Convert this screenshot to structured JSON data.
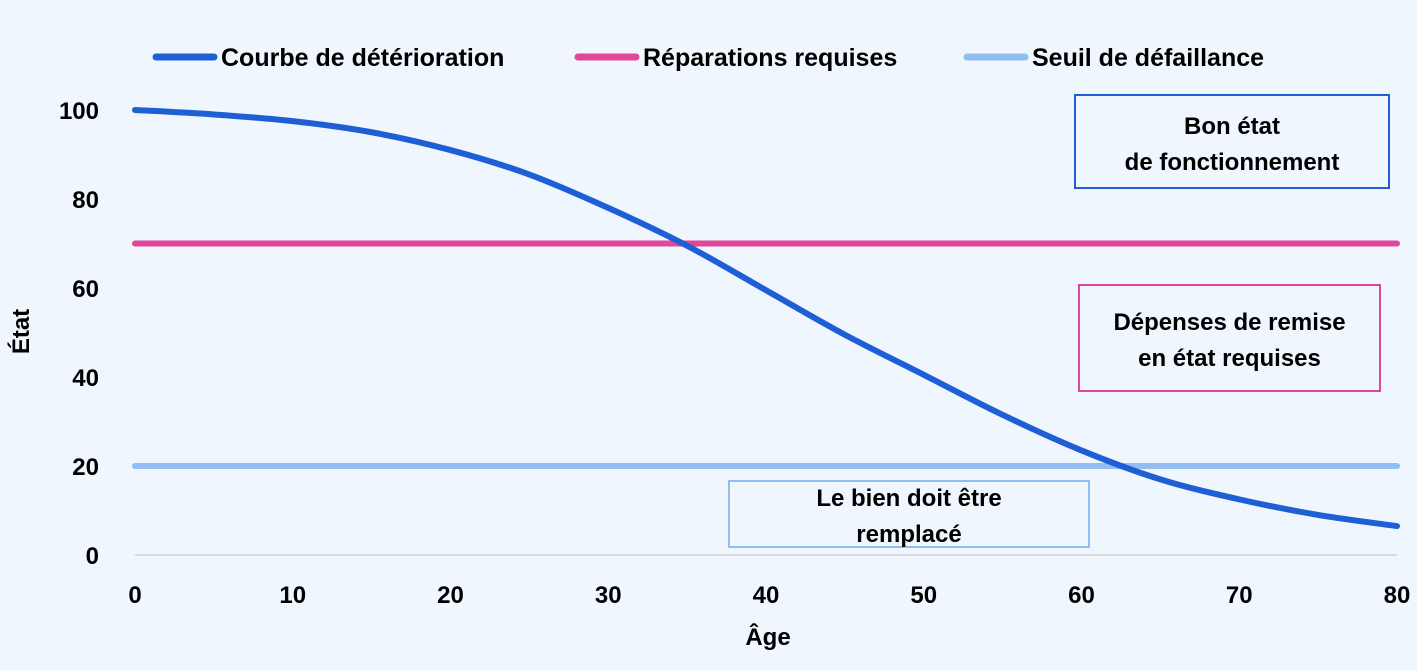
{
  "chart_data": {
    "type": "line",
    "xlabel": "Âge",
    "ylabel": "État",
    "xlim": [
      0,
      80
    ],
    "ylim": [
      0,
      100
    ],
    "xticks": [
      0,
      10,
      20,
      30,
      40,
      50,
      60,
      70,
      80
    ],
    "yticks": [
      0,
      20,
      40,
      60,
      80,
      100
    ],
    "grid": false,
    "legend_position": "top",
    "series": [
      {
        "name": "Courbe de détérioration",
        "color": "#1f5fd6",
        "x": [
          0,
          5,
          10,
          15,
          20,
          25,
          30,
          35,
          40,
          45,
          50,
          55,
          60,
          65,
          70,
          75,
          80
        ],
        "y": [
          100,
          99,
          97.5,
          95,
          91,
          85.5,
          78,
          69.5,
          59.5,
          49.5,
          40.5,
          31.5,
          23.5,
          17,
          12.5,
          9,
          6.5
        ]
      },
      {
        "name": "Réparations requises",
        "color": "#e0479a",
        "x": [
          0,
          80
        ],
        "y": [
          70,
          70
        ]
      },
      {
        "name": "Seuil de défaillance",
        "color": "#92bdf2",
        "x": [
          0,
          80
        ],
        "y": [
          20,
          20
        ]
      }
    ],
    "annotations": [
      {
        "lines": [
          "Bon état",
          "de fonctionnement"
        ],
        "color": "#1f5fd6"
      },
      {
        "lines": [
          "Dépenses de remise",
          "en état requises"
        ],
        "color": "#e0479a"
      },
      {
        "lines": [
          "Le bien doit être",
          "remplacé"
        ],
        "color": "#92bdf2"
      }
    ]
  }
}
